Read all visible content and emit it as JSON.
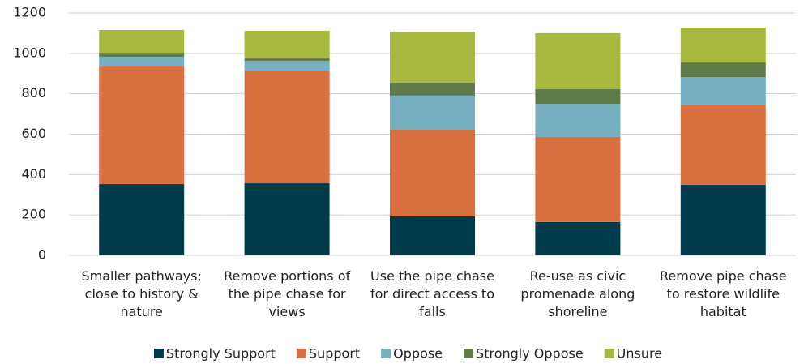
{
  "chart_data": {
    "type": "stacked_bar",
    "categories": [
      "Smaller pathways; close to history & nature",
      "Remove portions of the pipe chase for views",
      "Use the pipe chase for direct access to falls",
      "Re-use as civic promenade along shoreline",
      "Remove pipe chase to restore wildlife habitat"
    ],
    "series": [
      {
        "name": "Strongly Support",
        "color": "#003b4c",
        "values": [
          353,
          357,
          193,
          165,
          349
        ]
      },
      {
        "name": "Support",
        "color": "#d97040",
        "values": [
          582,
          558,
          429,
          421,
          397
        ]
      },
      {
        "name": "Oppose",
        "color": "#76afc0",
        "values": [
          48,
          48,
          169,
          164,
          137
        ]
      },
      {
        "name": "Strongly Oppose",
        "color": "#617a4a",
        "values": [
          20,
          12,
          64,
          73,
          72
        ]
      },
      {
        "name": "Unsure",
        "color": "#a8b83e",
        "values": [
          113,
          137,
          253,
          277,
          173
        ]
      }
    ],
    "ylim": [
      0,
      1200
    ],
    "yticks": [
      0,
      200,
      400,
      600,
      800,
      1000,
      1200
    ],
    "grid": true,
    "legend": "bottom"
  }
}
